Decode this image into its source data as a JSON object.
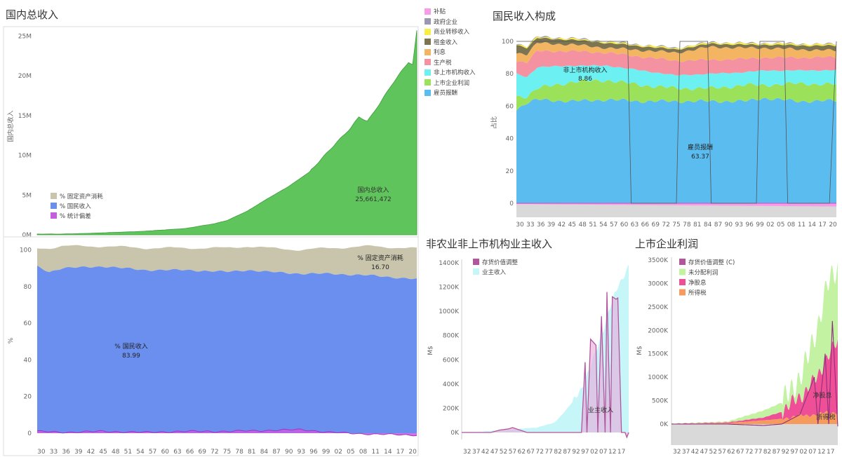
{
  "titles": {
    "gni": "国内总收入",
    "composition": "国民收入构成",
    "proprietor": "非农业非上市机构业主收入",
    "corp": "上市企业利润"
  },
  "colors": {
    "gni_green": "#5fc45b",
    "national_income_blue": "#6b8fef",
    "fixed_capital_tan": "#c9c5ac",
    "stat_discrepancy_purple": "#c65de0",
    "compensation_blue": "#5bbcf0",
    "corp_profit_green": "#9be25a",
    "unincorp_cyan": "#6cf0f2",
    "production_tax_pink": "#f592a2",
    "interest_orange": "#f3b561",
    "rent_olive": "#7d7551",
    "transfer_yellow": "#f8ee45",
    "gov_enterprise_gray": "#9b97b3",
    "subsidy_pink": "#f79ce8",
    "inventory_adj_magenta": "#b3559d",
    "proprietor_cyan": "#c7f6f9",
    "undistributed_green": "#c3f2a3",
    "net_dividends_pink": "#ef4f97",
    "income_tax_orange": "#f69b5e"
  },
  "composition_legend": [
    {
      "label": "补贴",
      "color": "#f79ce8"
    },
    {
      "label": "政府企业",
      "color": "#9b97b3"
    },
    {
      "label": "商业转移收入",
      "color": "#f8ee45"
    },
    {
      "label": "租金收入",
      "color": "#7d7551"
    },
    {
      "label": "利息",
      "color": "#f3b561"
    },
    {
      "label": "生产税",
      "color": "#f592a2"
    },
    {
      "label": "非上市机构收入",
      "color": "#6cf0f2"
    },
    {
      "label": "上市企业利润",
      "color": "#9be25a"
    },
    {
      "label": "雇员报酬",
      "color": "#5bbcf0"
    }
  ],
  "chart_data": [
    {
      "id": "gni_total",
      "type": "area",
      "title": "国内总收入",
      "ylabel": "国内总收入",
      "ylim": [
        0,
        26000000
      ],
      "y_ticks": [
        "25M",
        "20M",
        "15M",
        "10M",
        "5M",
        "0M"
      ],
      "y_tick_values": [
        25000000,
        20000000,
        15000000,
        10000000,
        5000000,
        0
      ],
      "x_range": [
        1929,
        2021
      ],
      "series": [
        {
          "name": "国内总收入",
          "x": [
            1929,
            1935,
            1945,
            1955,
            1965,
            1972,
            1975,
            1980,
            1985,
            1990,
            1995,
            2000,
            2005,
            2007,
            2009,
            2010,
            2015,
            2019,
            2020,
            2021
          ],
          "values": [
            100000,
            90000,
            250000,
            450000,
            800000,
            1400000,
            1800000,
            3000000,
            4600000,
            6100000,
            7900000,
            10800000,
            13400000,
            14800000,
            14300000,
            15000000,
            18900000,
            21700000,
            21400000,
            25661472
          ]
        }
      ],
      "annotation": {
        "label": "国内总收入",
        "value": "25,661,472"
      },
      "legend": [
        "% 固定资产消耗",
        "% 国民收入",
        "% 统计偏差"
      ]
    },
    {
      "id": "gni_share",
      "type": "area",
      "ylabel": "%",
      "ylim": [
        0,
        104
      ],
      "y_ticks": [
        "100",
        "80",
        "60",
        "40",
        "20",
        "0"
      ],
      "y_tick_values": [
        100,
        80,
        60,
        40,
        20,
        0
      ],
      "x_range": [
        1929,
        2021
      ],
      "x_tick_labels": [
        "30",
        "33",
        "36",
        "39",
        "42",
        "45",
        "48",
        "51",
        "54",
        "57",
        "60",
        "63",
        "66",
        "69",
        "72",
        "75",
        "78",
        "81",
        "84",
        "87",
        "90",
        "93",
        "96",
        "99",
        "02",
        "05",
        "08",
        "11",
        "14",
        "17",
        "20"
      ],
      "series": [
        {
          "name": "% 统计偏差",
          "x": [
            1929,
            1935,
            1945,
            1955,
            1965,
            1975,
            1985,
            1993,
            2000,
            2010,
            2021
          ],
          "values": [
            1,
            0.5,
            1,
            0.5,
            1,
            1,
            1.5,
            2,
            0.5,
            -0.5,
            -1
          ]
        },
        {
          "name": "% 国民收入",
          "x": [
            1929,
            1932,
            1935,
            1945,
            1955,
            1965,
            1975,
            1980,
            1985,
            1993,
            2000,
            2010,
            2021
          ],
          "values": [
            91,
            88,
            90,
            91,
            89,
            89,
            88,
            89,
            88,
            87,
            87,
            86,
            84
          ]
        },
        {
          "name": "% 固定资产消耗",
          "x": [
            1929,
            1932,
            1935,
            1945,
            1955,
            1965,
            1975,
            1980,
            1985,
            1993,
            2000,
            2010,
            2021
          ],
          "values": [
            10,
            13,
            12,
            11,
            12,
            12,
            13,
            13,
            13,
            13,
            14,
            16,
            16.7
          ]
        }
      ],
      "annotations": [
        {
          "label": "% 国民收入",
          "value": "83.99"
        },
        {
          "label": "% 固定资产消耗",
          "value": "16.70"
        }
      ]
    },
    {
      "id": "composition",
      "type": "area",
      "title": "国民收入构成",
      "ylabel": "占比",
      "ylim": [
        -3,
        102
      ],
      "y_ticks": [
        "100",
        "80",
        "60",
        "40",
        "20",
        "0"
      ],
      "y_tick_values": [
        100,
        80,
        60,
        40,
        20,
        0
      ],
      "x_range": [
        1929,
        2021
      ],
      "x_tick_labels": [
        "30",
        "33",
        "36",
        "39",
        "42",
        "45",
        "48",
        "51",
        "54",
        "57",
        "60",
        "63",
        "66",
        "69",
        "72",
        "75",
        "78",
        "81",
        "84",
        "87",
        "90",
        "93",
        "96",
        "99",
        "02",
        "05",
        "08",
        "11",
        "14",
        "17",
        "20"
      ],
      "series": [
        {
          "name": "雇员报酬",
          "x": [
            1929,
            1932,
            1935,
            1945,
            1955,
            1965,
            1975,
            1985,
            1995,
            2000,
            2010,
            2021
          ],
          "values": [
            58,
            62,
            64,
            63,
            64,
            63,
            63,
            63,
            63,
            65,
            63,
            63.37
          ]
        },
        {
          "name": "上市企业利润",
          "x": [
            1929,
            1932,
            1935,
            1945,
            1955,
            1965,
            1975,
            1985,
            1995,
            2000,
            2010,
            2021
          ],
          "values": [
            8,
            4,
            7,
            12,
            12,
            10,
            8,
            8,
            10,
            8,
            11,
            10
          ]
        },
        {
          "name": "非上市机构收入",
          "x": [
            1929,
            1932,
            1935,
            1945,
            1955,
            1965,
            1975,
            1985,
            1995,
            2000,
            2010,
            2021
          ],
          "values": [
            14,
            12,
            13,
            10,
            9,
            9,
            8,
            9,
            8,
            9,
            8,
            8.86
          ]
        },
        {
          "name": "生产税",
          "x": [
            1929,
            1935,
            1955,
            1975,
            2000,
            2021
          ],
          "values": [
            8,
            10,
            8,
            9,
            8,
            8
          ]
        },
        {
          "name": "利息",
          "x": [
            1929,
            1935,
            1955,
            1975,
            1985,
            2000,
            2021
          ],
          "values": [
            5,
            5,
            3,
            5,
            8,
            6,
            4
          ]
        },
        {
          "name": "租金收入",
          "x": [
            1929,
            1935,
            1955,
            1975,
            2000,
            2021
          ],
          "values": [
            5,
            3,
            3,
            2,
            2,
            3
          ]
        },
        {
          "name": "商业转移收入",
          "x": [
            1929,
            2021
          ],
          "values": [
            0.6,
            0.8
          ]
        },
        {
          "name": "政府企业",
          "x": [
            1929,
            2021
          ],
          "values": [
            0.3,
            0.2
          ]
        },
        {
          "name": "补贴",
          "x": [
            1929,
            2021
          ],
          "values": [
            -0.5,
            -2
          ]
        }
      ],
      "annotations": [
        {
          "label": "非上市机构收入",
          "value": "8.86"
        },
        {
          "label": "雇员报酬",
          "value": "63.37"
        }
      ]
    },
    {
      "id": "proprietor",
      "type": "area",
      "title": "非农业非上市机构业主收入",
      "ylabel": "M$",
      "ylim": [
        -60000,
        1420000
      ],
      "y_ticks": [
        "1400K",
        "1200K",
        "1000K",
        "800K",
        "600K",
        "400K",
        "200K",
        "0K"
      ],
      "y_tick_values": [
        1400000,
        1200000,
        1000000,
        800000,
        600000,
        400000,
        200000,
        0
      ],
      "x_range": [
        1929,
        2021
      ],
      "x_tick_labels": [
        "32",
        "37",
        "42",
        "47",
        "52",
        "57",
        "62",
        "67",
        "72",
        "77",
        "82",
        "87",
        "92",
        "97",
        "02",
        "07",
        "12",
        "17"
      ],
      "series": [
        {
          "name": "业主收入",
          "x": [
            1929,
            1940,
            1950,
            1960,
            1970,
            1980,
            1985,
            1990,
            1995,
            2000,
            2005,
            2010,
            2015,
            2021
          ],
          "values": [
            5000,
            6000,
            20000,
            30000,
            40000,
            80000,
            160000,
            250000,
            370000,
            540000,
            760000,
            1000000,
            1200000,
            1380000
          ]
        },
        {
          "name": "存货价值调整",
          "x": [
            1929,
            1945,
            1950,
            1955,
            1957,
            1965,
            1995,
            1997,
            1998,
            2000,
            2003,
            2004,
            2006,
            2008,
            2009,
            2011,
            2012,
            2014,
            2015,
            2017,
            2019,
            2020,
            2021
          ],
          "values": [
            0,
            0,
            20000,
            30000,
            40000,
            0,
            0,
            580000,
            0,
            770000,
            720000,
            0,
            960000,
            0,
            1160000,
            0,
            1120000,
            1100000,
            1110000,
            0,
            0,
            -40000,
            0
          ]
        }
      ],
      "legend": [
        "存货价值调整",
        "业主收入"
      ],
      "annotation": {
        "label": "业主收入"
      }
    },
    {
      "id": "corp_profit",
      "type": "area",
      "title": "上市企业利润",
      "ylabel": "M$",
      "ylim": [
        -450000,
        3550000
      ],
      "y_ticks": [
        "3500K",
        "3000K",
        "2500K",
        "2000K",
        "1500K",
        "1000K",
        "500K",
        "0K"
      ],
      "y_tick_values": [
        3500000,
        3000000,
        2500000,
        2000000,
        1500000,
        1000000,
        500000,
        0
      ],
      "x_range": [
        1929,
        2021
      ],
      "x_tick_labels": [
        "32",
        "37",
        "42",
        "47",
        "52",
        "57",
        "62",
        "67",
        "72",
        "77",
        "82",
        "87",
        "92",
        "97",
        "02",
        "07",
        "12",
        "17"
      ],
      "series": [
        {
          "name": "所得税",
          "x": [
            1929,
            1960,
            1980,
            1990,
            2000,
            2010,
            2015,
            2021
          ],
          "values": [
            2000,
            20000,
            80000,
            110000,
            180000,
            200000,
            260000,
            230000
          ]
        },
        {
          "name": "净股息",
          "x": [
            1929,
            1960,
            1980,
            1990,
            2000,
            2005,
            2010,
            2015,
            2021
          ],
          "values": [
            4000,
            15000,
            60000,
            150000,
            400000,
            600000,
            800000,
            1200000,
            1500000
          ]
        },
        {
          "name": "未分配利润",
          "x": [
            1929,
            1960,
            1980,
            1990,
            2000,
            2005,
            2010,
            2015,
            2021
          ],
          "values": [
            5000,
            20000,
            150000,
            200000,
            400000,
            700000,
            1100000,
            1500000,
            1600000
          ]
        },
        {
          "name": "存货价值调整 (C)",
          "x": [
            1929,
            1960,
            1980,
            1990,
            2000,
            2008,
            2010,
            2014,
            2016,
            2018,
            2021
          ],
          "values": [
            0,
            0,
            -30000,
            0,
            200000,
            1000000,
            0,
            1500000,
            0,
            2200000,
            -50000
          ]
        }
      ],
      "legend": [
        "存货价值调整 (C)",
        "未分配利润",
        "净股息",
        "所得税"
      ],
      "annotations": [
        {
          "label": "净股息"
        },
        {
          "label": "所得税"
        }
      ]
    }
  ]
}
